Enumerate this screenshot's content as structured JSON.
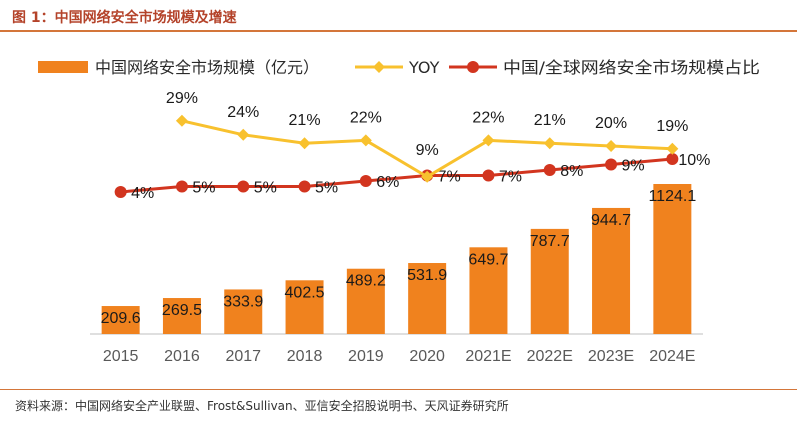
{
  "figure": {
    "title": "图 1：中国网络安全市场规模及增速",
    "source": "资料来源：中国网络安全产业联盟、Frost&Sullivan、亚信安全招股说明书、天风证券研究所"
  },
  "colors": {
    "bar": "#f0821e",
    "yoy": "#f8c12e",
    "share": "#d2351f",
    "rule": "#d4763a",
    "axis": "#bfbfbf"
  },
  "chart_data": {
    "type": "bar",
    "categories": [
      "2015",
      "2016",
      "2017",
      "2018",
      "2019",
      "2020",
      "2021E",
      "2022E",
      "2023E",
      "2024E"
    ],
    "series": [
      {
        "name": "中国网络安全市场规模（亿元）",
        "type": "bar",
        "values": [
          209.6,
          269.5,
          333.9,
          402.5,
          489.2,
          531.9,
          649.7,
          787.7,
          944.7,
          1124.1
        ],
        "labels": [
          "209.6",
          "269.5",
          "333.9",
          "402.5",
          "489.2",
          "531.9",
          "649.7",
          "787.7",
          "944.7",
          "1124.1"
        ]
      },
      {
        "name": "YOY",
        "type": "line",
        "values": [
          null,
          29,
          24,
          21,
          22,
          9,
          22,
          21,
          20,
          19
        ],
        "labels": [
          "",
          "29%",
          "24%",
          "21%",
          "22%",
          "9%",
          "22%",
          "21%",
          "20%",
          "19%"
        ]
      },
      {
        "name": "中国/全球网络安全市场规模占比",
        "type": "line",
        "values": [
          4,
          5,
          5,
          5,
          6,
          7,
          7,
          8,
          9,
          10
        ],
        "labels": [
          "4%",
          "5%",
          "5%",
          "5%",
          "6%",
          "7%",
          "7%",
          "8%",
          "9%",
          "10%"
        ]
      }
    ],
    "legend": "top",
    "grid": false
  }
}
